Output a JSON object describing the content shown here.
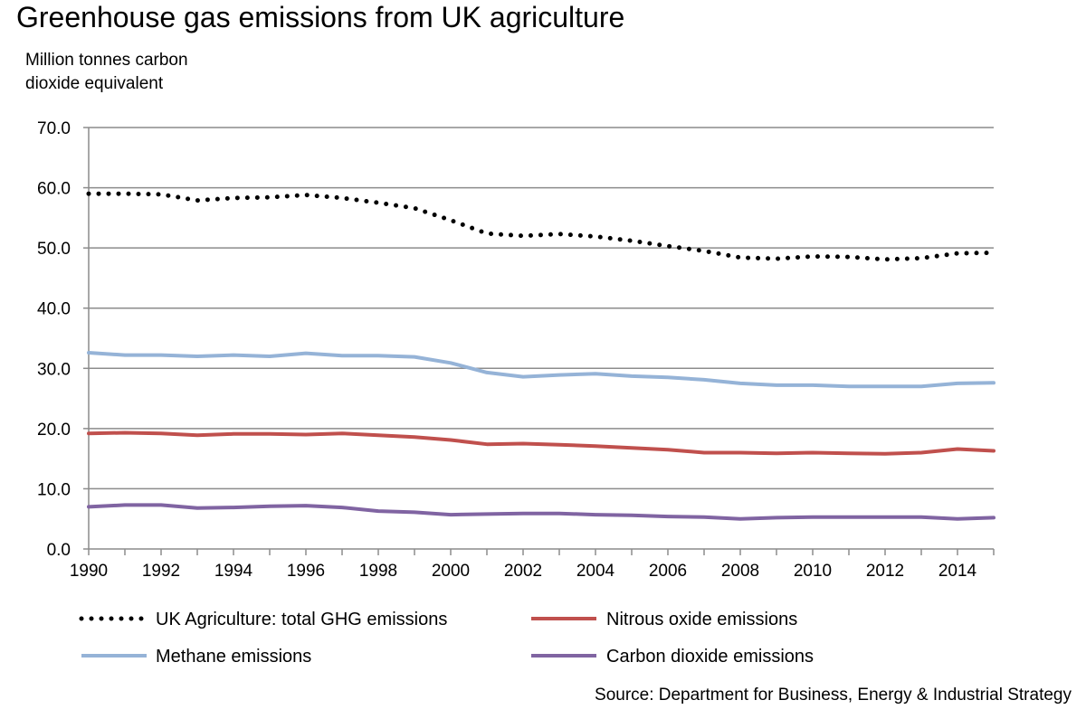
{
  "title": "Greenhouse gas emissions from UK agriculture",
  "source": "Source: Department for Business, Energy & Industrial Strategy",
  "chart_data": {
    "type": "line",
    "title": "Greenhouse gas emissions from UK agriculture",
    "ylabel_lines": [
      "Million tonnes carbon",
      "dioxide equivalent"
    ],
    "xlabel": "",
    "ylim": [
      0,
      70
    ],
    "yticks": [
      0,
      10,
      20,
      30,
      40,
      50,
      60,
      70
    ],
    "ytick_labels": [
      "0.0",
      "10.0",
      "20.0",
      "30.0",
      "40.0",
      "50.0",
      "60.0",
      "70.0"
    ],
    "xlim": [
      1990,
      2015
    ],
    "xticks": [
      1990,
      1992,
      1994,
      1996,
      1998,
      2000,
      2002,
      2004,
      2006,
      2008,
      2010,
      2012,
      2014
    ],
    "grid": "horizontal",
    "legend_position": "bottom",
    "x": [
      1990,
      1991,
      1992,
      1993,
      1994,
      1995,
      1996,
      1997,
      1998,
      1999,
      2000,
      2001,
      2002,
      2003,
      2004,
      2005,
      2006,
      2007,
      2008,
      2009,
      2010,
      2011,
      2012,
      2013,
      2014,
      2015
    ],
    "series": [
      {
        "name": "UK Agriculture: total GHG emissions",
        "color": "#000000",
        "style": "dotted",
        "values": [
          59.0,
          59.0,
          58.9,
          57.9,
          58.3,
          58.4,
          58.8,
          58.3,
          57.5,
          56.6,
          54.6,
          52.4,
          52.0,
          52.3,
          51.9,
          51.2,
          50.3,
          49.5,
          48.4,
          48.2,
          48.6,
          48.5,
          48.1,
          48.3,
          49.1,
          49.2
        ]
      },
      {
        "name": "Nitrous oxide emissions",
        "color": "#c0504d",
        "style": "solid",
        "values": [
          19.2,
          19.3,
          19.2,
          18.9,
          19.1,
          19.1,
          19.0,
          19.2,
          18.9,
          18.6,
          18.1,
          17.4,
          17.5,
          17.3,
          17.1,
          16.8,
          16.5,
          16.0,
          16.0,
          15.9,
          16.0,
          15.9,
          15.8,
          16.0,
          16.6,
          16.3
        ]
      },
      {
        "name": "Methane emissions",
        "color": "#95b3d7",
        "style": "solid",
        "values": [
          32.6,
          32.2,
          32.2,
          32.0,
          32.2,
          32.0,
          32.5,
          32.1,
          32.1,
          31.9,
          30.9,
          29.3,
          28.6,
          28.9,
          29.1,
          28.7,
          28.5,
          28.1,
          27.5,
          27.2,
          27.2,
          27.0,
          27.0,
          27.0,
          27.5,
          27.6
        ]
      },
      {
        "name": "Carbon dioxide emissions",
        "color": "#8064a2",
        "style": "solid",
        "values": [
          7.0,
          7.3,
          7.3,
          6.8,
          6.9,
          7.1,
          7.2,
          6.9,
          6.3,
          6.1,
          5.7,
          5.8,
          5.9,
          5.9,
          5.7,
          5.6,
          5.4,
          5.3,
          5.0,
          5.2,
          5.3,
          5.3,
          5.3,
          5.3,
          5.0,
          5.2
        ]
      }
    ]
  }
}
